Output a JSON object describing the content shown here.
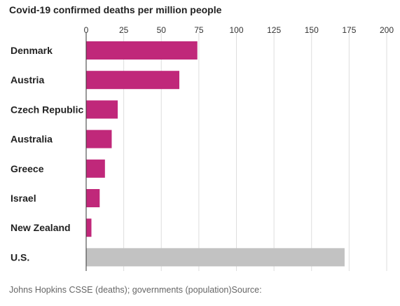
{
  "chart_data": {
    "type": "bar",
    "orientation": "horizontal",
    "title": "Covid-19 confirmed deaths per million people",
    "categories": [
      "Denmark",
      "Austria",
      "Czech Republic",
      "Australia",
      "Greece",
      "Israel",
      "New Zealand",
      "U.S."
    ],
    "values": [
      74,
      62,
      21,
      17,
      12.5,
      9,
      3.5,
      172
    ],
    "xlim": [
      0,
      200
    ],
    "xticks": [
      0,
      25,
      50,
      75,
      100,
      125,
      150,
      175,
      200
    ],
    "xaxis_position": "top",
    "grid": true,
    "colors": {
      "highlight": "#c0287a",
      "reference": "#c2c2c2",
      "gridline": "#dddddd",
      "axis": "#333333"
    },
    "bar_colors": [
      "highlight",
      "highlight",
      "highlight",
      "highlight",
      "highlight",
      "highlight",
      "highlight",
      "reference"
    ],
    "source": "Johns Hopkins CSSE (deaths); governments (population)Source:"
  }
}
